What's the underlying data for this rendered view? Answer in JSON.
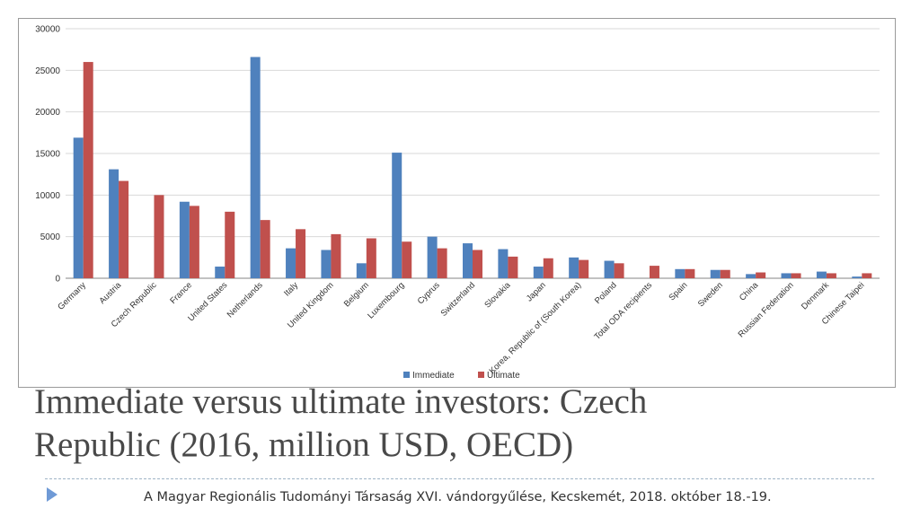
{
  "colors": {
    "immediate": "#4f81bd",
    "ultimate": "#c0504d",
    "gridline": "#d9d9d9",
    "axis": "#868686",
    "title_text": "#494949",
    "footer_text": "#333333",
    "bullet": "#6f9ad6",
    "divider": "#9fb4c6"
  },
  "slide": {
    "title_line1": "Immediate versus ultimate investors: Czech",
    "title_line2": "Republic (2016, million USD, OECD)",
    "footer": "A Magyar Regionális Tudományi Társaság XVI. vándorgyűlése, Kecskemét, 2018. október 18.-19.",
    "bullet_icon": "triangle-right-icon"
  },
  "chart_data": {
    "type": "bar",
    "title": "",
    "xlabel": "",
    "ylabel": "",
    "ylim": [
      0,
      30000
    ],
    "yticks": [
      0,
      5000,
      10000,
      15000,
      20000,
      25000,
      30000
    ],
    "grid": true,
    "legend_position": "bottom",
    "categories": [
      "Germany",
      "Austria",
      "Czech Republic",
      "France",
      "United States",
      "Netherlands",
      "Italy",
      "United Kingdom",
      "Belgium",
      "Luxembourg",
      "Cyprus",
      "Switzerland",
      "Slovakia",
      "Japan",
      "Korea, Republic of (South Korea)",
      "Poland",
      "Total ODA recipients",
      "Spain",
      "Sweden",
      "China",
      "Russian Federation",
      "Denmark",
      "Chinese Taipei"
    ],
    "series": [
      {
        "name": "Immediate",
        "values": [
          16900,
          13100,
          0,
          9200,
          1400,
          26600,
          3600,
          3400,
          1800,
          15100,
          5000,
          4200,
          3500,
          1400,
          2500,
          2100,
          0,
          1100,
          1000,
          500,
          600,
          800,
          200
        ]
      },
      {
        "name": "Ultimate",
        "values": [
          26000,
          11700,
          10000,
          8700,
          8000,
          7000,
          5900,
          5300,
          4800,
          4400,
          3600,
          3400,
          2600,
          2400,
          2200,
          1800,
          1500,
          1100,
          1000,
          700,
          600,
          600,
          600
        ]
      }
    ]
  }
}
